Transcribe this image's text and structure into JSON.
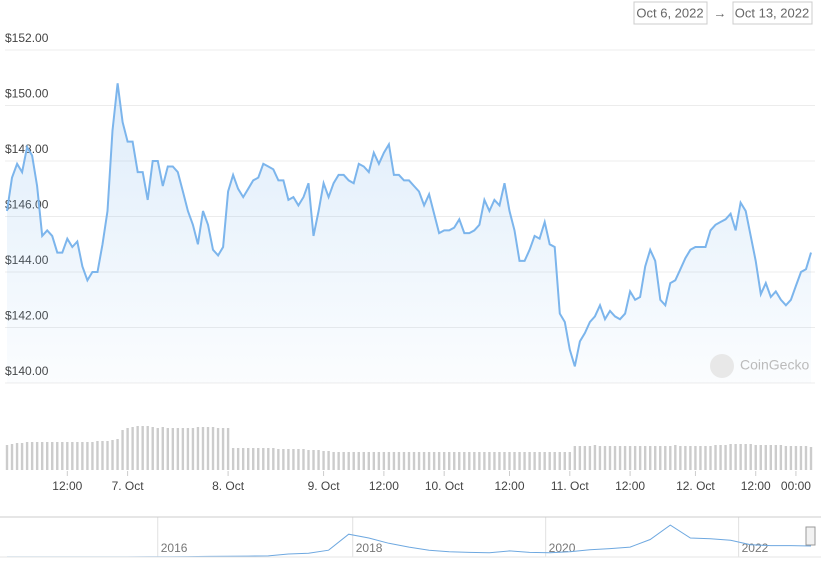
{
  "chart_data": {
    "type": "line",
    "date_range": {
      "from": "Oct 6, 2022",
      "arrow": "→",
      "to": "Oct 13, 2022"
    },
    "watermark": "CoinGecko",
    "series": [
      {
        "color": "#7cb5ec",
        "values": [
          146.2,
          147.4,
          147.9,
          147.6,
          148.5,
          148.2,
          147.1,
          145.3,
          145.5,
          145.3,
          144.7,
          144.7,
          145.2,
          144.9,
          145.1,
          144.2,
          143.7,
          144.0,
          144.0,
          145.0,
          146.2,
          149.1,
          150.8,
          149.4,
          148.7,
          148.7,
          147.6,
          147.6,
          146.6,
          148.0,
          148.0,
          147.1,
          147.8,
          147.8,
          147.6,
          146.9,
          146.2,
          145.7,
          145.0,
          146.2,
          145.7,
          144.8,
          144.6,
          144.9,
          146.9,
          147.5,
          147.0,
          146.7,
          147.0,
          147.3,
          147.4,
          147.9,
          147.8,
          147.7,
          147.3,
          147.3,
          146.6,
          146.7,
          146.4,
          146.7,
          147.2,
          145.3,
          146.2,
          147.2,
          146.7,
          147.2,
          147.5,
          147.5,
          147.3,
          147.2,
          147.9,
          147.8,
          147.6,
          148.3,
          147.9,
          148.3,
          148.6,
          147.5,
          147.5,
          147.3,
          147.3,
          147.1,
          146.9,
          146.4,
          146.8,
          146.1,
          145.4,
          145.5,
          145.5,
          145.6,
          145.9,
          145.4,
          145.4,
          145.5,
          145.7,
          146.6,
          146.2,
          146.6,
          146.4,
          147.2,
          146.2,
          145.5,
          144.4,
          144.4,
          144.8,
          145.3,
          145.2,
          145.8,
          145.0,
          144.9,
          142.5,
          142.2,
          141.2,
          140.6,
          141.5,
          141.8,
          142.2,
          142.4,
          142.8,
          142.3,
          142.6,
          142.4,
          142.3,
          142.5,
          143.3,
          143.0,
          143.1,
          144.2,
          144.8,
          144.4,
          143.0,
          142.8,
          143.6,
          143.7,
          144.1,
          144.5,
          144.8,
          144.9,
          144.9,
          144.9,
          145.5,
          145.7,
          145.8,
          145.9,
          146.1,
          145.5,
          146.5,
          146.2,
          145.3,
          144.4,
          143.2,
          143.6,
          143.1,
          143.3,
          143.0,
          142.8,
          143.0,
          143.5,
          144.0,
          144.1,
          144.7
        ]
      }
    ],
    "ylim": [
      140,
      152
    ],
    "yticks": [
      {
        "value": 140,
        "label": "$140.00"
      },
      {
        "value": 142,
        "label": "$142.00"
      },
      {
        "value": 144,
        "label": "$144.00"
      },
      {
        "value": 146,
        "label": "$146.00"
      },
      {
        "value": 148,
        "label": "$148.00"
      },
      {
        "value": 150,
        "label": "$150.00"
      },
      {
        "value": 152,
        "label": "$152.00"
      }
    ],
    "xlim": [
      0,
      160
    ],
    "xticks": [
      {
        "value": 12,
        "label": "12:00"
      },
      {
        "value": 24,
        "label": "7. Oct"
      },
      {
        "value": 44,
        "label": "8. Oct"
      },
      {
        "value": 63,
        "label": "9. Oct"
      },
      {
        "value": 75,
        "label": "12:00"
      },
      {
        "value": 87,
        "label": "10. Oct"
      },
      {
        "value": 100,
        "label": "12:00"
      },
      {
        "value": 112,
        "label": "11. Oct"
      },
      {
        "value": 124,
        "label": "12:00"
      },
      {
        "value": 137,
        "label": "12. Oct"
      },
      {
        "value": 149,
        "label": "12:00"
      },
      {
        "value": 157,
        "label": "00:00"
      }
    ],
    "grid": true,
    "volume": {
      "color": "#cccccc",
      "ylim": [
        0,
        45
      ],
      "values": [
        25,
        26,
        27,
        27,
        28,
        28,
        28,
        28,
        28,
        28,
        28,
        28,
        28,
        28,
        28,
        28,
        28,
        28,
        29,
        29,
        29,
        30,
        31,
        40,
        42,
        43,
        44,
        44,
        44,
        43,
        42,
        43,
        42,
        42,
        42,
        42,
        42,
        42,
        43,
        43,
        43,
        43,
        42,
        42,
        42,
        22,
        22,
        22,
        22,
        22,
        22,
        22,
        22,
        22,
        21,
        21,
        21,
        21,
        21,
        21,
        20,
        20,
        20,
        19,
        19,
        18,
        18,
        18,
        18,
        18,
        18,
        18,
        18,
        18,
        18,
        18,
        18,
        18,
        18,
        18,
        18,
        18,
        18,
        18,
        18,
        18,
        18,
        18,
        18,
        18,
        18,
        18,
        18,
        18,
        18,
        18,
        18,
        18,
        18,
        18,
        18,
        18,
        18,
        18,
        18,
        18,
        18,
        18,
        18,
        18,
        18,
        18,
        18,
        24,
        24,
        24,
        24,
        25,
        24,
        24,
        24,
        24,
        24,
        24,
        24,
        24,
        24,
        24,
        24,
        24,
        24,
        24,
        24,
        25,
        24,
        24,
        24,
        24,
        24,
        24,
        24,
        25,
        25,
        25,
        26,
        26,
        26,
        26,
        26,
        25,
        25,
        25,
        25,
        25,
        25,
        24,
        24,
        24,
        24,
        24,
        23
      ]
    },
    "navigator": {
      "color": "#6ea8e0",
      "xlim": [
        0,
        40
      ],
      "ylim": [
        0,
        500
      ],
      "values": [
        1,
        1,
        1,
        1,
        1,
        1,
        1,
        2,
        3,
        5,
        8,
        10,
        12,
        15,
        40,
        50,
        90,
        300,
        250,
        180,
        130,
        90,
        70,
        60,
        55,
        80,
        60,
        55,
        70,
        95,
        110,
        130,
        230,
        420,
        250,
        240,
        220,
        160,
        150,
        150,
        145
      ],
      "xticks": [
        {
          "value": 7.5,
          "label": "2016"
        },
        {
          "value": 17.2,
          "label": "2018"
        },
        {
          "value": 26.8,
          "label": "2020"
        },
        {
          "value": 36.4,
          "label": "2022"
        }
      ]
    }
  }
}
